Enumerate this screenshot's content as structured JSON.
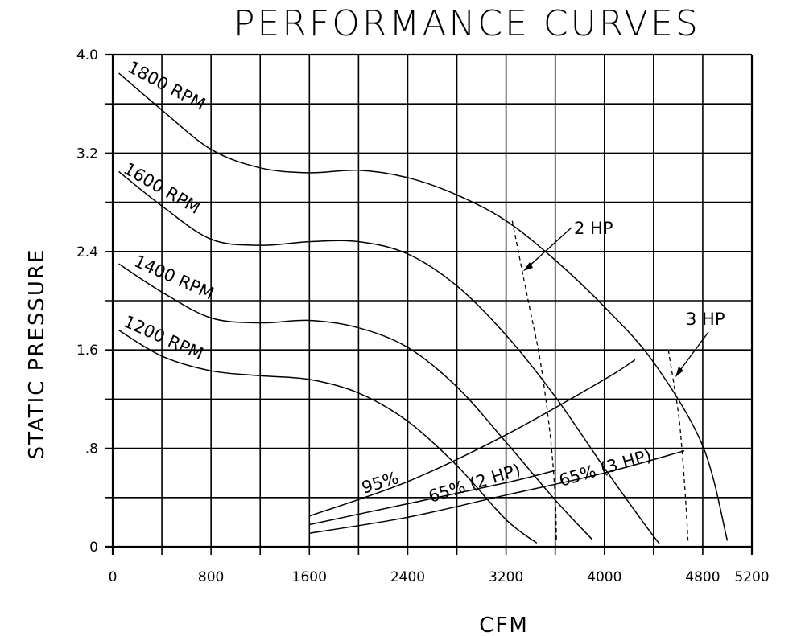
{
  "chart_data": {
    "type": "line",
    "title": "PERFORMANCE CURVES",
    "xlabel": "CFM",
    "ylabel": "STATIC PRESSURE",
    "xlim": [
      0,
      5200
    ],
    "ylim": [
      0,
      4.0
    ],
    "grid": true,
    "x_ticks": [
      "0",
      "800",
      "1600",
      "2400",
      "3200",
      "4000",
      "4800",
      "5200"
    ],
    "x_tick_values": [
      0,
      800,
      1600,
      2400,
      3200,
      4000,
      4800,
      5200
    ],
    "y_ticks": [
      "0",
      ".8",
      "1.6",
      "2.4",
      "3.2",
      "4.0"
    ],
    "y_tick_values": [
      0,
      0.8,
      1.6,
      2.4,
      3.2,
      4.0
    ],
    "series": [
      {
        "name": "1800 RPM",
        "x": [
          50,
          400,
          800,
          1200,
          1600,
          2000,
          2400,
          2800,
          3200,
          3600,
          4000,
          4400,
          4800,
          5000
        ],
        "y": [
          3.85,
          3.55,
          3.23,
          3.08,
          3.04,
          3.06,
          3.0,
          2.86,
          2.65,
          2.33,
          1.95,
          1.5,
          0.82,
          0.05
        ]
      },
      {
        "name": "1600 RPM",
        "x": [
          50,
          400,
          800,
          1200,
          1600,
          2000,
          2400,
          2800,
          3200,
          3600,
          4000,
          4300,
          4450
        ],
        "y": [
          3.05,
          2.77,
          2.5,
          2.45,
          2.48,
          2.48,
          2.38,
          2.12,
          1.72,
          1.22,
          0.64,
          0.22,
          0.02
        ]
      },
      {
        "name": "1400 RPM",
        "x": [
          50,
          400,
          800,
          1200,
          1600,
          2000,
          2400,
          2800,
          3200,
          3600,
          3900
        ],
        "y": [
          2.3,
          2.07,
          1.86,
          1.82,
          1.84,
          1.78,
          1.62,
          1.3,
          0.85,
          0.38,
          0.06
        ]
      },
      {
        "name": "1200 RPM",
        "x": [
          50,
          400,
          800,
          1200,
          1600,
          2000,
          2400,
          2800,
          3200,
          3450
        ],
        "y": [
          1.76,
          1.55,
          1.43,
          1.39,
          1.36,
          1.25,
          1.02,
          0.66,
          0.22,
          0.03
        ]
      },
      {
        "name": "95%",
        "x": [
          1600,
          2400,
          3200,
          4000,
          4250
        ],
        "y": [
          0.25,
          0.53,
          0.91,
          1.36,
          1.52
        ]
      },
      {
        "name": "65% (2 HP)",
        "x": [
          1600,
          2400,
          3200,
          3600
        ],
        "y": [
          0.18,
          0.35,
          0.52,
          0.62
        ]
      },
      {
        "name": "65% (3 HP)",
        "x": [
          1600,
          2400,
          3200,
          4000,
          4650
        ],
        "y": [
          0.11,
          0.24,
          0.42,
          0.6,
          0.78
        ]
      },
      {
        "name": "2 HP",
        "style": "dashed",
        "x": [
          3250,
          3380,
          3480,
          3560,
          3600,
          3610
        ],
        "y": [
          2.65,
          2.0,
          1.5,
          0.9,
          0.4,
          0.05
        ]
      },
      {
        "name": "3 HP",
        "style": "dashed",
        "x": [
          4520,
          4600,
          4630,
          4660,
          4680
        ],
        "y": [
          1.6,
          1.1,
          0.8,
          0.4,
          0.05
        ]
      }
    ],
    "labels": [
      "1800 RPM",
      "1600 RPM",
      "1400 RPM",
      "1200 RPM",
      "95%",
      "65% (2 HP)",
      "65% (3 HP)",
      "2 HP",
      "3 HP"
    ]
  }
}
